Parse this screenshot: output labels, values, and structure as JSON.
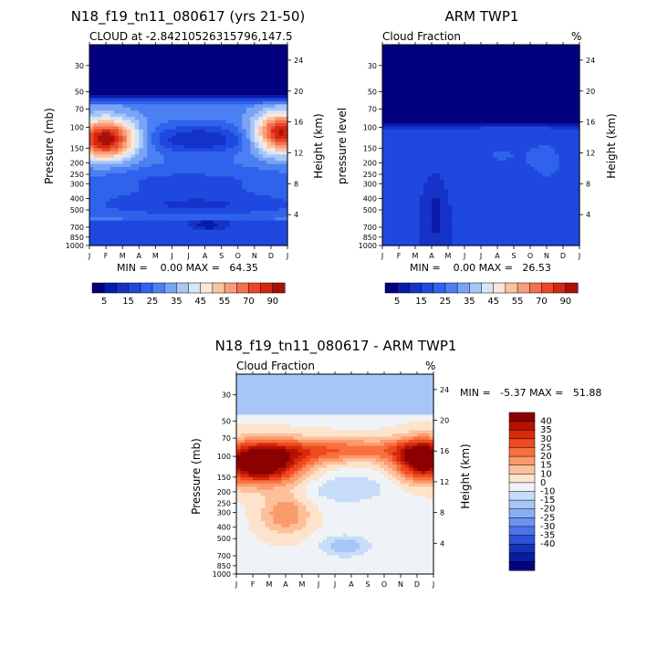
{
  "panels": {
    "model": {
      "title": "N18_f19_tn11_080617 (yrs 21-50)",
      "subtitle": "CLOUD at -2.84210526315796,147.5",
      "ylabel_left": "Pressure (mb)",
      "ylabel_right": "Height (km)",
      "stats": "MIN =    0.00 MAX =   64.35"
    },
    "obs": {
      "title": "ARM TWP1",
      "subtitle": "Cloud Fraction",
      "units": "%",
      "ylabel_left": "pressure level",
      "ylabel_right": "Height (km)",
      "stats": "MIN =    0.00 MAX =   26.53"
    },
    "diff": {
      "title": "N18_f19_tn11_080617 - ARM TWP1",
      "subtitle": "Cloud Fraction",
      "units": "%",
      "ylabel_left": "Pressure (mb)",
      "ylabel_right": "Height (km)",
      "stats": "MIN =   -5.37 MAX =   51.88"
    }
  },
  "chart_data": [
    {
      "type": "heatmap",
      "name": "model",
      "title": "N18_f19_tn11_080617 (yrs 21-50)",
      "subtitle": "CLOUD at -2.84210526315796,147.5",
      "xlabel": "",
      "ylabel": "Pressure (mb)",
      "ylabel_right": "Height (km)",
      "x_ticks": [
        "J",
        "F",
        "M",
        "A",
        "M",
        "J",
        "J",
        "A",
        "S",
        "O",
        "N",
        "D",
        "J"
      ],
      "pressure_ticks": [
        30,
        50,
        70,
        100,
        150,
        200,
        250,
        300,
        400,
        500,
        700,
        850,
        1000
      ],
      "height_ticks": [
        24,
        20,
        16,
        12,
        8,
        4
      ],
      "ylim": [
        1000,
        20
      ],
      "min": 0.0,
      "max": 64.35,
      "levels": [
        5,
        10,
        15,
        20,
        25,
        30,
        35,
        40,
        45,
        50,
        55,
        60,
        70,
        80,
        90
      ]
    },
    {
      "type": "heatmap",
      "name": "obs",
      "title": "ARM TWP1",
      "subtitle": "Cloud Fraction",
      "ylabel": "pressure level",
      "ylabel_right": "Height (km)",
      "x_ticks": [
        "J",
        "F",
        "M",
        "A",
        "M",
        "J",
        "J",
        "A",
        "S",
        "O",
        "N",
        "D",
        "J"
      ],
      "pressure_ticks": [
        30,
        50,
        70,
        100,
        150,
        200,
        250,
        300,
        400,
        500,
        700,
        850,
        1000
      ],
      "height_ticks": [
        24,
        20,
        16,
        12,
        8,
        4
      ],
      "ylim": [
        1000,
        20
      ],
      "min": 0.0,
      "max": 26.53,
      "levels": [
        5,
        10,
        15,
        20,
        25,
        30,
        35,
        40,
        45,
        50,
        55,
        60,
        70,
        80,
        90
      ]
    },
    {
      "type": "heatmap",
      "name": "difference",
      "title": "N18_f19_tn11_080617 - ARM TWP1",
      "subtitle": "Cloud Fraction",
      "ylabel": "Pressure (mb)",
      "ylabel_right": "Height (km)",
      "x_ticks": [
        "J",
        "F",
        "M",
        "A",
        "M",
        "J",
        "J",
        "A",
        "S",
        "O",
        "N",
        "D",
        "J"
      ],
      "pressure_ticks": [
        30,
        50,
        70,
        100,
        150,
        200,
        250,
        300,
        400,
        500,
        700,
        850,
        1000
      ],
      "height_ticks": [
        24,
        20,
        16,
        12,
        8,
        4
      ],
      "ylim": [
        1000,
        20
      ],
      "min": -5.37,
      "max": 51.88,
      "levels": [
        -40,
        -35,
        -30,
        -25,
        -20,
        -15,
        -10,
        0,
        10,
        15,
        20,
        25,
        30,
        35,
        40
      ]
    }
  ],
  "colorbar_seq": {
    "labels": [
      "5",
      "15",
      "25",
      "35",
      "45",
      "55",
      "70",
      "90"
    ],
    "colors": [
      "#02007e",
      "#0a1aa8",
      "#1533c8",
      "#1f48df",
      "#2f63ec",
      "#4a80f2",
      "#7aa3f5",
      "#a8c6f7",
      "#d5e6fb",
      "#fde6d4",
      "#fbc3a3",
      "#f79e7a",
      "#f2724f",
      "#ea4828",
      "#d6260f",
      "#a8100a"
    ]
  },
  "colorbar_diff": {
    "labels": [
      "40",
      "35",
      "30",
      "25",
      "20",
      "15",
      "10",
      "0",
      "-10",
      "-15",
      "-20",
      "-25",
      "-30",
      "-35",
      "-40"
    ],
    "colors": [
      "#8b0000",
      "#b31200",
      "#d62a0d",
      "#ef4a1f",
      "#f8703f",
      "#fb9a6c",
      "#fdc09a",
      "#fde3cb",
      "#eff3f7",
      "#c6dcf8",
      "#a6c6f6",
      "#8aaef3",
      "#6a92ef",
      "#4d73e8",
      "#2e52d9",
      "#1534bb",
      "#0a1c9e",
      "#020580"
    ]
  }
}
